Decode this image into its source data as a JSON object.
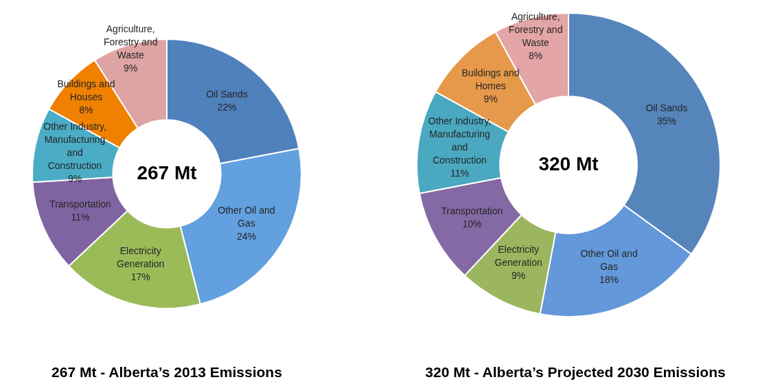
{
  "chart_data": [
    {
      "type": "donut",
      "title": "267 Mt - Alberta’s 2013 Emissions",
      "categories": [
        "Oil Sands",
        "Other Oil and Gas",
        "Electricity Generation",
        "Transportation",
        "Other Industry, Manufacturing and Construction",
        "Buildings and Houses",
        "Agriculture, Forestry and Waste"
      ],
      "values": [
        22,
        24,
        17,
        11,
        9,
        8,
        9
      ],
      "value_labels": [
        "22%",
        "24%",
        "17%",
        "11%",
        "9%",
        "8%",
        "9%"
      ],
      "colors": [
        "#4f81bd",
        "#62a0df",
        "#9bbb59",
        "#8064a2",
        "#4bacc6",
        "#f08100",
        "#dea3a3"
      ],
      "annotations": [
        "267 Mt"
      ],
      "legend": false
    },
    {
      "type": "donut",
      "title": "320 Mt - Alberta’s Projected 2030 Emissions",
      "categories": [
        "Oil Sands",
        "Other Oil and Gas",
        "Electricity Generation",
        "Transportation",
        "Other Industry, Manufacturing and Construction",
        "Buildings and Homes",
        "Agriculture, Forestry and Waste"
      ],
      "values": [
        35,
        18,
        9,
        10,
        11,
        9,
        8
      ],
      "value_labels": [
        "35%",
        "18%",
        "9%",
        "10%",
        "11%",
        "9%",
        "8%"
      ],
      "colors": [
        "#5585bb",
        "#6398da",
        "#9bb65e",
        "#8569a5",
        "#4aa8c0",
        "#e6994a",
        "#e3a5a6"
      ],
      "annotations": [
        "320 Mt"
      ],
      "legend": false
    }
  ]
}
